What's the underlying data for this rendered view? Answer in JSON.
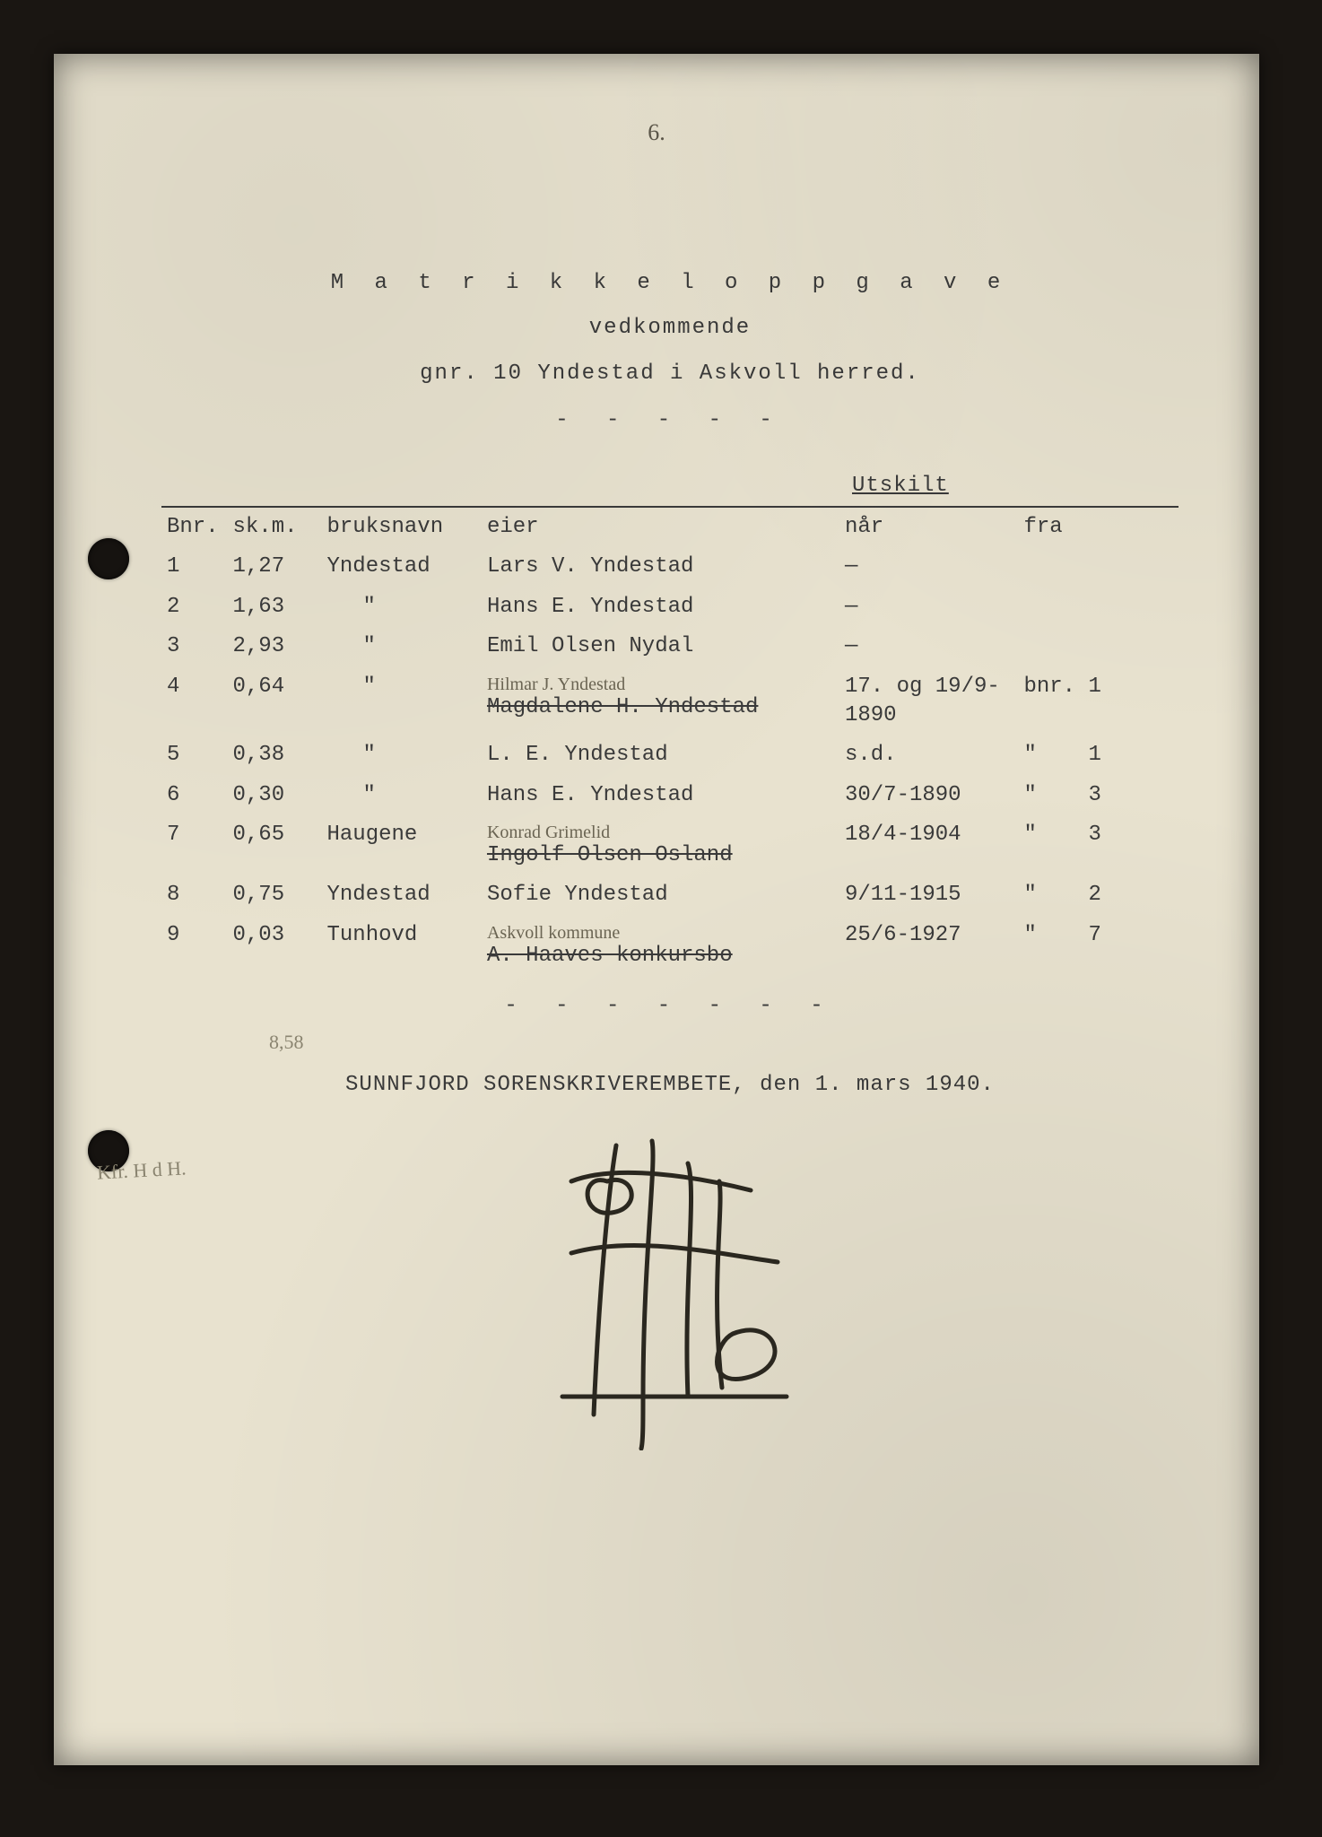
{
  "page_number_handwritten": "6.",
  "title": {
    "main": "M a t r i k k e l o p p g a v e",
    "sub1": "vedkommende",
    "sub2": "gnr. 10 Yndestad i Askvoll herred.",
    "sep": "- - - - -"
  },
  "utskilt_label": "Utskilt",
  "columns": {
    "bnr": "Bnr.",
    "skm": "sk.m.",
    "bruksnavn": "bruksnavn",
    "eier": "eier",
    "nar": "når",
    "fra": "fra"
  },
  "rows": [
    {
      "bnr": "1",
      "skm": "1,27",
      "navn": "Yndestad",
      "eier": "Lars V. Yndestad",
      "nar": "—",
      "fra": ""
    },
    {
      "bnr": "2",
      "skm": "1,63",
      "navn": "\"",
      "eier": "Hans E. Yndestad",
      "nar": "—",
      "fra": ""
    },
    {
      "bnr": "3",
      "skm": "2,93",
      "navn": "\"",
      "eier": "Emil Olsen Nydal",
      "nar": "—",
      "fra": ""
    },
    {
      "bnr": "4",
      "skm": "0,64",
      "navn": "\"",
      "eier_strike": "Magdalene H. Yndestad",
      "eier_hand": "Hilmar J. Yndestad",
      "nar": "17. og 19/9-1890",
      "fra": "bnr. 1"
    },
    {
      "bnr": "5",
      "skm": "0,38",
      "navn": "\"",
      "eier": "L. E. Yndestad",
      "nar": "s.d.",
      "fra": "\"    1"
    },
    {
      "bnr": "6",
      "skm": "0,30",
      "navn": "\"",
      "eier": "Hans E. Yndestad",
      "nar": "30/7-1890",
      "fra": "\"    3"
    },
    {
      "bnr": "7",
      "skm": "0,65",
      "navn": "Haugene",
      "eier_strike": "Ingolf Olsen Osland",
      "eier_hand": "Konrad Grimelid",
      "nar": "18/4-1904",
      "fra": "\"    3"
    },
    {
      "bnr": "8",
      "skm": "0,75",
      "navn": "Yndestad",
      "eier": "Sofie Yndestad",
      "nar": "9/11-1915",
      "fra": "\"    2"
    },
    {
      "bnr": "9",
      "skm": "0,03",
      "navn": "Tunhovd",
      "eier_strike": "A. Haaves konkursbo",
      "eier_hand": "Askvoll kommune",
      "nar": "25/6-1927",
      "fra": "\"    7"
    }
  ],
  "sep2": "- - - - - - -",
  "pencil_total": "8,58",
  "footer": "SUNNFJORD SORENSKRIVEREMBETE, den 1. mars 1940.",
  "margin_note": "Kfr. H d H.",
  "colors": {
    "paper": "#e8e2cf",
    "ink": "#3a3a3a",
    "pencil": "#8a8470",
    "hand_ink": "#6b6553",
    "frame": "#1a1612"
  },
  "typography": {
    "body_font": "Courier New",
    "body_size_pt": 18,
    "hand_font": "cursive"
  }
}
